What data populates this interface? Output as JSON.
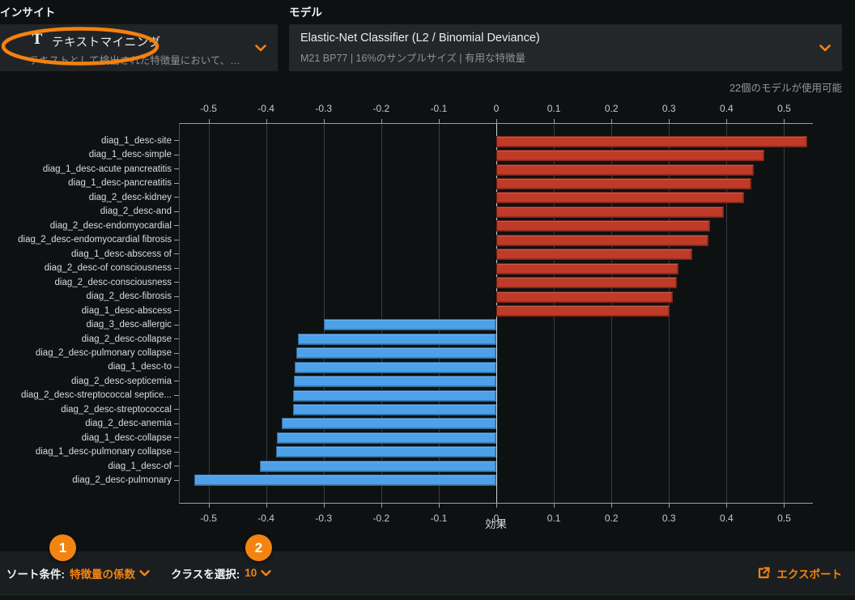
{
  "insight": {
    "section_label": "インサイト",
    "selected_icon": "T",
    "selected_title": "テキストマイニング",
    "selected_subtitle": "テキストとして検出された特徴量において、単語..."
  },
  "model": {
    "section_label": "モデル",
    "selected_title": "Elastic-Net Classifier (L2 / Binomial Deviance)",
    "selected_subtitle": "M21 BP77 | 16%のサンプルサイズ | 有用な特徴量",
    "available_note": "22個のモデルが使用可能"
  },
  "chart_data": {
    "type": "bar",
    "orientation": "horizontal",
    "xlabel": "効果",
    "xlim": [
      -0.55,
      0.55
    ],
    "xticks": [
      -0.5,
      -0.4,
      -0.3,
      -0.2,
      -0.1,
      0,
      0.1,
      0.2,
      0.3,
      0.4,
      0.5
    ],
    "grid": true,
    "zero_line": true,
    "positive_color": "#bf3a27",
    "negative_color": "#4da1e8",
    "categories": [
      "diag_1_desc-site",
      "diag_1_desc-simple",
      "diag_1_desc-acute pancreatitis",
      "diag_1_desc-pancreatitis",
      "diag_2_desc-kidney",
      "diag_2_desc-and",
      "diag_2_desc-endomyocardial",
      "diag_2_desc-endomyocardial fibrosis",
      "diag_1_desc-abscess of",
      "diag_2_desc-of consciousness",
      "diag_2_desc-consciousness",
      "diag_2_desc-fibrosis",
      "diag_1_desc-abscess",
      "diag_3_desc-allergic",
      "diag_2_desc-collapse",
      "diag_2_desc-pulmonary collapse",
      "diag_1_desc-to",
      "diag_2_desc-septicemia",
      "diag_2_desc-streptococcal septice...",
      "diag_2_desc-streptococcal",
      "diag_2_desc-anemia",
      "diag_1_desc-collapse",
      "diag_1_desc-pulmonary collapse",
      "diag_1_desc-of",
      "diag_2_desc-pulmonary"
    ],
    "values": [
      0.54,
      0.465,
      0.447,
      0.443,
      0.43,
      0.395,
      0.372,
      0.369,
      0.34,
      0.316,
      0.314,
      0.307,
      0.301,
      -0.3,
      -0.345,
      -0.347,
      -0.35,
      -0.352,
      -0.353,
      -0.353,
      -0.373,
      -0.381,
      -0.382,
      -0.411,
      -0.525
    ]
  },
  "footer": {
    "sort_label": "ソート条件:",
    "sort_value": "特徴量の係数",
    "class_label": "クラスを選択:",
    "class_value": "10",
    "export_label": "エクスポート"
  },
  "annotations": {
    "badge_1": "1",
    "badge_2": "2"
  },
  "colors": {
    "accent_orange": "#f28411",
    "positive_bar": "#bf3a27",
    "negative_bar": "#4da1e8",
    "background": "#0e1112",
    "panel": "#212427",
    "footer_bar": "#1b1e20"
  }
}
